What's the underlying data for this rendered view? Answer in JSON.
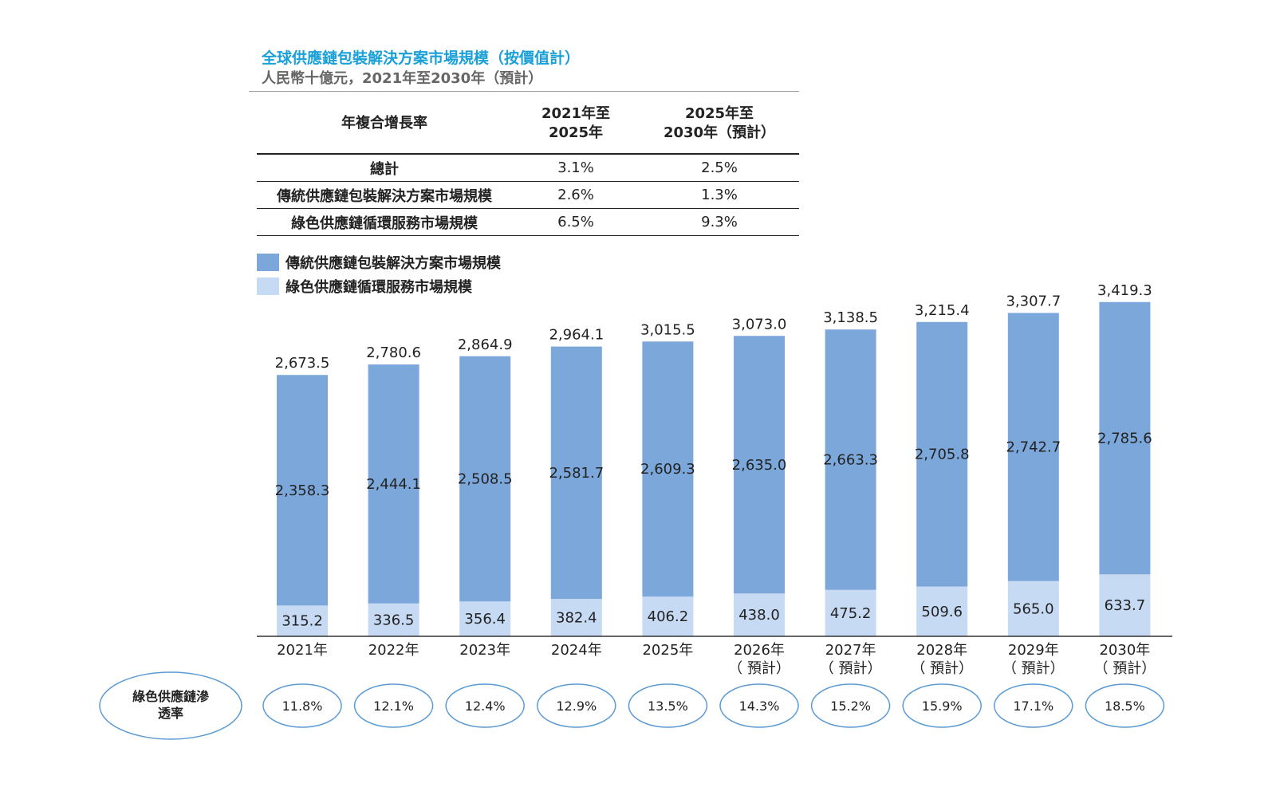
{
  "title": "全球供應鏈包裝解決方案市場規模（按價值計）",
  "subtitle": "人民幣十億元，2021年至2030年（預計）",
  "cagr_table": {
    "header": {
      "label": "年複合增長率",
      "col1_line1": "2021年至",
      "col1_line2": "2025年",
      "col2_line1": "2025年至",
      "col2_line2": "2030年（預計）"
    },
    "rows": [
      {
        "label": "總計",
        "v1": "3.1%",
        "v2": "2.5%"
      },
      {
        "label": "傳統供應鏈包裝解決方案市場規模",
        "v1": "2.6%",
        "v2": "1.3%"
      },
      {
        "label": "綠色供應鏈循環服務市場規模",
        "v1": "6.5%",
        "v2": "9.3%"
      }
    ]
  },
  "legend": [
    {
      "label": "傳統供應鏈包裝解決方案市場規模",
      "color": "#7ba7da"
    },
    {
      "label": "綠色供應鏈循環服務市場規模",
      "color": "#c6daf3"
    }
  ],
  "chart_data": {
    "type": "bar",
    "stacked": true,
    "categories": [
      "2021年",
      "2022年",
      "2023年",
      "2024年",
      "2025年",
      "2026年",
      "2027年",
      "2028年",
      "2029年",
      "2030年"
    ],
    "category_sublabels": [
      "",
      "",
      "",
      "",
      "",
      "（ 預計）",
      "（ 預計）",
      "（ 預計）",
      "（ 預計）",
      "（ 預計）"
    ],
    "series": [
      {
        "name": "綠色供應鏈循環服務市場規模",
        "color": "#c6daf3",
        "values": [
          315.2,
          336.5,
          356.4,
          382.4,
          406.2,
          438.0,
          475.2,
          509.6,
          565.0,
          633.7
        ],
        "labels": [
          "315.2",
          "336.5",
          "356.4",
          "382.4",
          "406.2",
          "438.0",
          "475.2",
          "509.6",
          "565.0",
          "633.7"
        ]
      },
      {
        "name": "傳統供應鏈包裝解決方案市場規模",
        "color": "#7ba7da",
        "values": [
          2358.3,
          2444.1,
          2508.5,
          2581.7,
          2609.3,
          2635.0,
          2663.3,
          2705.8,
          2742.7,
          2785.6
        ],
        "labels": [
          "2,358.3",
          "2,444.1",
          "2,508.5",
          "2,581.7",
          "2,609.3",
          "2,635.0",
          "2,663.3",
          "2,705.8",
          "2,742.7",
          "2,785.6"
        ]
      }
    ],
    "totals": [
      2673.5,
      2780.6,
      2864.9,
      2964.1,
      3015.5,
      3073.0,
      3138.5,
      3215.4,
      3307.7,
      3419.3
    ],
    "total_labels": [
      "2,673.5",
      "2,780.6",
      "2,864.9",
      "2,964.1",
      "3,015.5",
      "3,073.0",
      "3,138.5",
      "3,215.4",
      "3,307.7",
      "3,419.3"
    ],
    "ylim": [
      0,
      3500
    ],
    "grid": false,
    "penetration": {
      "label_line1": "綠色供應鏈滲",
      "label_line2": "透率",
      "values": [
        "11.8%",
        "12.1%",
        "12.4%",
        "12.9%",
        "13.5%",
        "14.3%",
        "15.2%",
        "15.9%",
        "17.1%",
        "18.5%"
      ]
    }
  }
}
